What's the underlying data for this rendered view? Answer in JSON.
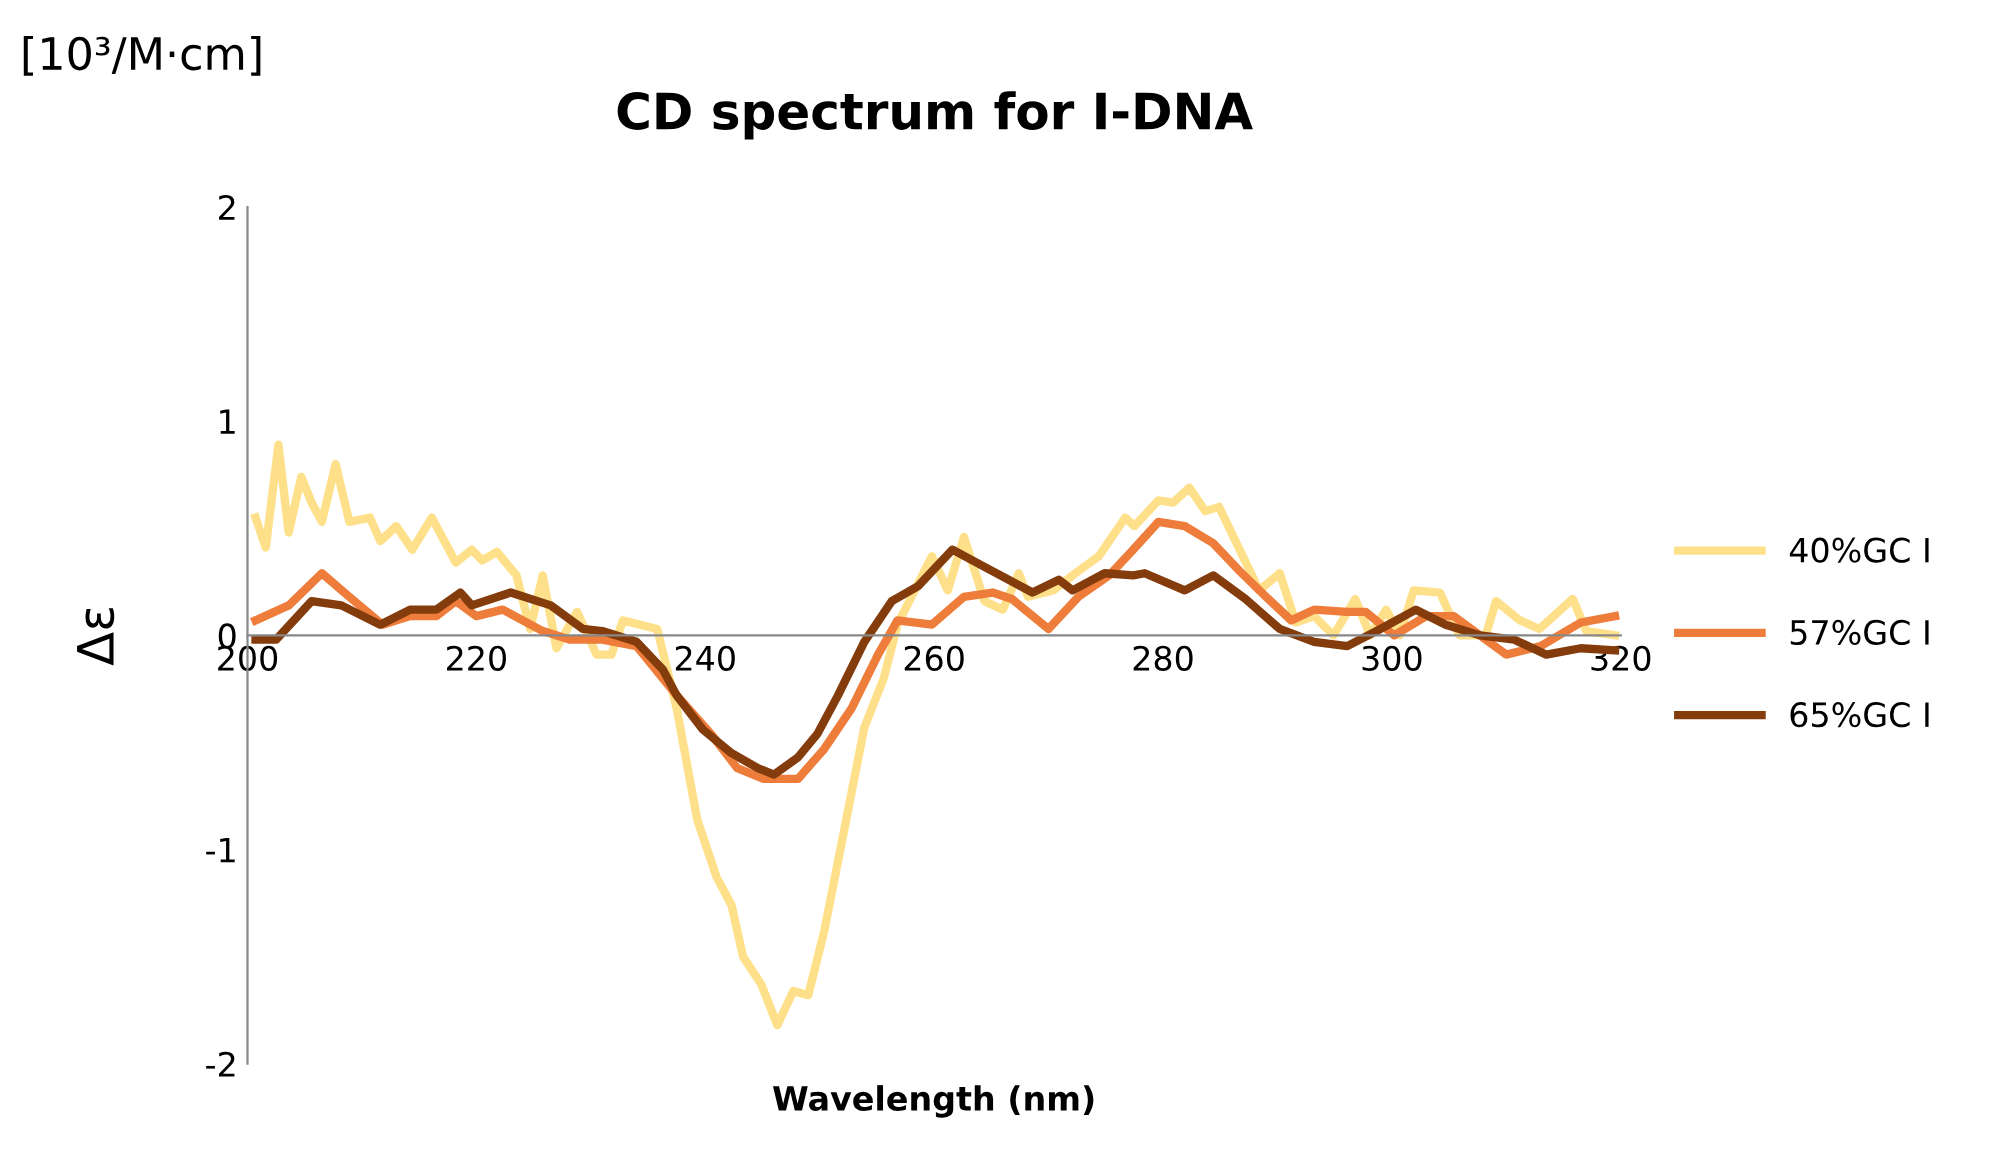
{
  "chart_data": {
    "type": "line",
    "title": "CD spectrum for I-DNA",
    "xlabel": "Wavelength (nm)",
    "ylabel": "Δε",
    "annotations": [
      "[10³/M·cm]"
    ],
    "xlim": [
      200,
      320
    ],
    "xticks": [
      200,
      220,
      240,
      260,
      280,
      300,
      320
    ],
    "ylim": [
      -2,
      2
    ],
    "yticks": [
      -2,
      -1,
      0,
      1,
      2
    ],
    "grid": false,
    "legend": "right",
    "marker": "none",
    "line_style": "solid",
    "series": [
      {
        "name": "40%GC I",
        "color": "#ffe08a",
        "x": [
          200.7,
          201.6,
          202.7,
          203.6,
          204.7,
          205.6,
          206.5,
          207.7,
          208.9,
          210.7,
          211.6,
          213,
          214.4,
          216.1,
          218.2,
          219.6,
          220.5,
          221.8,
          223.5,
          224.7,
          225.8,
          227,
          228.8,
          230.5,
          231.8,
          232.8,
          235.8,
          237.5,
          239.3,
          241,
          242.3,
          243.3,
          244.9,
          246.3,
          247.7,
          249,
          250.4,
          252.1,
          253.9,
          255.6,
          256.8,
          259.8,
          261.2,
          262.6,
          264.4,
          266,
          267.4,
          268.2,
          270.4,
          272.1,
          274.4,
          276.7,
          277.5,
          279.6,
          280.9,
          282.3,
          283.7,
          284.9,
          286.7,
          288.4,
          290.2,
          291.6,
          293.2,
          294.9,
          296.8,
          298.1,
          299.5,
          300.7,
          301.9,
          304.2,
          305.9,
          308.2,
          309.1,
          311.2,
          312.9,
          315.8,
          317,
          319.5
        ],
        "values": [
          0.55,
          0.41,
          0.89,
          0.48,
          0.74,
          0.62,
          0.53,
          0.8,
          0.53,
          0.55,
          0.44,
          0.51,
          0.4,
          0.55,
          0.34,
          0.4,
          0.35,
          0.39,
          0.28,
          0.03,
          0.28,
          -0.06,
          0.11,
          -0.09,
          -0.09,
          0.07,
          0.03,
          -0.34,
          -0.86,
          -1.13,
          -1.26,
          -1.5,
          -1.63,
          -1.82,
          -1.66,
          -1.68,
          -1.38,
          -0.92,
          -0.43,
          -0.2,
          0.05,
          0.37,
          0.21,
          0.46,
          0.16,
          0.12,
          0.29,
          0.18,
          0.21,
          0.28,
          0.37,
          0.55,
          0.51,
          0.63,
          0.62,
          0.69,
          0.58,
          0.6,
          0.4,
          0.21,
          0.29,
          0.06,
          0.09,
          0,
          0.17,
          0,
          0.12,
          0,
          0.21,
          0.2,
          0,
          0,
          0.16,
          0.07,
          0.03,
          0.17,
          0.02,
          0
        ]
      },
      {
        "name": "57%GC I",
        "color": "#ee7d3b",
        "x": [
          200.7,
          203.6,
          206.5,
          208.9,
          211.8,
          214.2,
          216.5,
          218.2,
          220,
          222.3,
          225.8,
          228.2,
          231,
          234,
          237.5,
          240.5,
          242.8,
          245.1,
          248.1,
          250.4,
          252.8,
          255.1,
          256.8,
          259.8,
          262.6,
          265.1,
          266.8,
          270,
          272.6,
          275.3,
          277.4,
          279.6,
          281.9,
          284.4,
          286.7,
          289,
          291.2,
          293.2,
          296.1,
          297.7,
          300.2,
          303,
          305.4,
          307.7,
          310,
          313,
          316.5,
          319.5
        ],
        "values": [
          0.07,
          0.14,
          0.29,
          0.18,
          0.05,
          0.09,
          0.09,
          0.16,
          0.09,
          0.12,
          0.02,
          -0.02,
          -0.02,
          -0.05,
          -0.28,
          -0.46,
          -0.62,
          -0.67,
          -0.67,
          -0.53,
          -0.34,
          -0.09,
          0.07,
          0.05,
          0.18,
          0.2,
          0.17,
          0.03,
          0.18,
          0.28,
          0.4,
          0.53,
          0.51,
          0.43,
          0.3,
          0.18,
          0.07,
          0.12,
          0.11,
          0.11,
          0,
          0.09,
          0.09,
          0,
          -0.09,
          -0.05,
          0.06,
          0.09
        ]
      },
      {
        "name": "65%GC I",
        "color": "#843c0c",
        "x": [
          200.7,
          202.5,
          205.6,
          208.2,
          211.6,
          214.2,
          216.5,
          218.6,
          219.6,
          223,
          226.5,
          229.3,
          231,
          234,
          236.3,
          237.5,
          239.8,
          242.3,
          244.6,
          246,
          248.1,
          249.8,
          251.6,
          253.9,
          256.3,
          258.6,
          261.6,
          264.4,
          268.6,
          270.9,
          272.1,
          274.9,
          277.4,
          278.4,
          281.9,
          284.4,
          287.2,
          290.2,
          293.2,
          296.1,
          299,
          302.1,
          304.7,
          307.7,
          310.7,
          313.5,
          316.5,
          319.5
        ],
        "values": [
          -0.02,
          -0.02,
          0.16,
          0.14,
          0.05,
          0.12,
          0.12,
          0.2,
          0.14,
          0.2,
          0.14,
          0.03,
          0.02,
          -0.03,
          -0.16,
          -0.28,
          -0.44,
          -0.55,
          -0.62,
          -0.65,
          -0.57,
          -0.46,
          -0.28,
          -0.03,
          0.16,
          0.23,
          0.4,
          0.32,
          0.2,
          0.26,
          0.21,
          0.29,
          0.28,
          0.29,
          0.21,
          0.28,
          0.17,
          0.03,
          -0.03,
          -0.05,
          0.03,
          0.12,
          0.05,
          0,
          -0.02,
          -0.09,
          -0.06,
          -0.07
        ]
      }
    ]
  }
}
